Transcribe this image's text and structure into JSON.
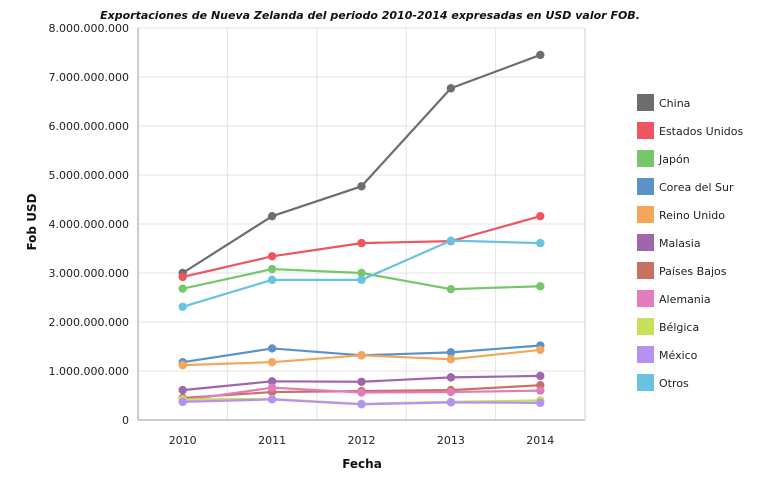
{
  "chart_data": {
    "type": "line",
    "title": "Exportaciones de Nueva Zelanda del periodo 2010-2014 expresadas en USD valor FOB.",
    "xlabel": "Fecha",
    "ylabel": "Fob USD",
    "categories": [
      "2010",
      "2011",
      "2012",
      "2013",
      "2014"
    ],
    "ylim": [
      0,
      8000000000
    ],
    "yticks": [
      0,
      1000000000,
      2000000000,
      3000000000,
      4000000000,
      5000000000,
      6000000000,
      7000000000,
      8000000000
    ],
    "ytick_labels": [
      "0",
      "1.000.000.000",
      "2.000.000.000",
      "3.000.000.000",
      "4.000.000.000",
      "5.000.000.000",
      "6.000.000.000",
      "7.000.000.000",
      "8.000.000.000"
    ],
    "grid": true,
    "legend_position": "right",
    "series": [
      {
        "name": "China",
        "color": "#6d6d6d",
        "values": [
          3000000000,
          4160000000,
          4770000000,
          6770000000,
          7450000000
        ]
      },
      {
        "name": "Estados Unidos",
        "color": "#ee5560",
        "values": [
          2920000000,
          3340000000,
          3610000000,
          3650000000,
          4160000000
        ]
      },
      {
        "name": "Japón",
        "color": "#76c66a",
        "values": [
          2680000000,
          3080000000,
          3000000000,
          2670000000,
          2730000000
        ]
      },
      {
        "name": "Corea del Sur",
        "color": "#5b92c9",
        "values": [
          1180000000,
          1460000000,
          1320000000,
          1380000000,
          1520000000
        ]
      },
      {
        "name": "Reino Unido",
        "color": "#f6a65a",
        "values": [
          1120000000,
          1180000000,
          1320000000,
          1240000000,
          1430000000
        ]
      },
      {
        "name": "Malasia",
        "color": "#9e67ab",
        "values": [
          610000000,
          790000000,
          780000000,
          870000000,
          900000000
        ]
      },
      {
        "name": "Países Bajos",
        "color": "#c97161",
        "values": [
          450000000,
          570000000,
          590000000,
          610000000,
          710000000
        ]
      },
      {
        "name": "Alemania",
        "color": "#e27cbc",
        "values": [
          400000000,
          660000000,
          560000000,
          570000000,
          600000000
        ]
      },
      {
        "name": "Bélgica",
        "color": "#c6e15a",
        "values": [
          420000000,
          430000000,
          330000000,
          370000000,
          400000000
        ]
      },
      {
        "name": "México",
        "color": "#b691f2",
        "values": [
          370000000,
          420000000,
          320000000,
          360000000,
          350000000
        ]
      },
      {
        "name": "Otros",
        "color": "#67c3e2",
        "values": [
          2310000000,
          2860000000,
          2860000000,
          3660000000,
          3610000000
        ]
      }
    ]
  }
}
